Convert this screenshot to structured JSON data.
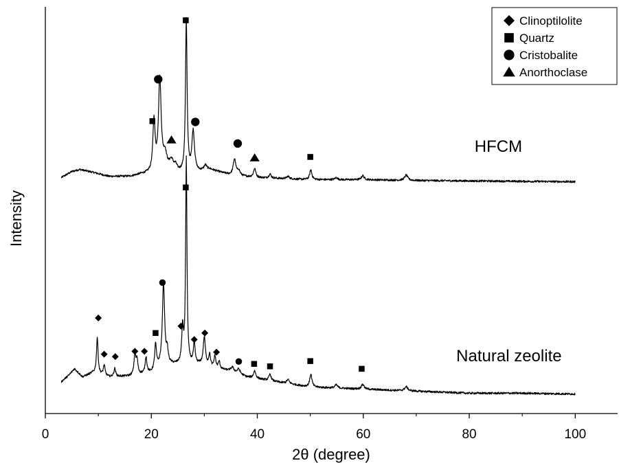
{
  "chart_data": {
    "type": "line",
    "title": "",
    "xlabel": "2θ (degree)",
    "ylabel": "Intensity",
    "xlim": [
      0,
      108
    ],
    "ylim": [
      0,
      1
    ],
    "xticks": [
      0,
      20,
      40,
      60,
      80,
      100
    ],
    "xtick_labels": [
      "0",
      "20",
      "40",
      "60",
      "80",
      "100"
    ],
    "y_ticks_shown": false,
    "grid": false,
    "legend_placement": "top-right",
    "series_colors": {
      "line": "#000000"
    },
    "legend": [
      {
        "label": "Clinoptilolite",
        "marker": "diamond"
      },
      {
        "label": "Quartz",
        "marker": "square"
      },
      {
        "label": "Cristobalite",
        "marker": "circle"
      },
      {
        "label": "Anorthoclase",
        "marker": "triangle"
      }
    ],
    "series": [
      {
        "name": "HFCM",
        "label_at": [
          85.5,
          0.644
        ],
        "baseline": [
          [
            3,
            0.58
          ],
          [
            5,
            0.595
          ],
          [
            6.5,
            0.6
          ],
          [
            9,
            0.593
          ],
          [
            12,
            0.583
          ],
          [
            16,
            0.583
          ],
          [
            18,
            0.588
          ],
          [
            20,
            0.59
          ],
          [
            22,
            0.598
          ],
          [
            24,
            0.593
          ],
          [
            26,
            0.59
          ],
          [
            28,
            0.59
          ],
          [
            31,
            0.6
          ],
          [
            35,
            0.586
          ],
          [
            40,
            0.58
          ],
          [
            50,
            0.575
          ],
          [
            60,
            0.575
          ],
          [
            70,
            0.573
          ],
          [
            80,
            0.572
          ],
          [
            100,
            0.57
          ]
        ],
        "peaks": [
          [
            20.5,
            0.123,
            0.25
          ],
          [
            21.6,
            0.223,
            0.3
          ],
          [
            22.6,
            0.035,
            0.4
          ],
          [
            23.8,
            0.025,
            0.5
          ],
          [
            24.6,
            0.012,
            0.3
          ],
          [
            26.6,
            0.375,
            0.18
          ],
          [
            27.9,
            0.102,
            0.3
          ],
          [
            30.2,
            0.012,
            0.3
          ],
          [
            35.7,
            0.04,
            0.3
          ],
          [
            36.5,
            0.012,
            0.3
          ],
          [
            39.5,
            0.022,
            0.25
          ],
          [
            42.4,
            0.01,
            0.25
          ],
          [
            45.8,
            0.006,
            0.3
          ],
          [
            50.1,
            0.024,
            0.25
          ],
          [
            54.9,
            0.005,
            0.3
          ],
          [
            59.9,
            0.01,
            0.3
          ],
          [
            68.1,
            0.013,
            0.35
          ]
        ]
      },
      {
        "name": "Natural zeolite",
        "label_at": [
          87.5,
          0.128
        ],
        "baseline": [
          [
            3,
            0.078
          ],
          [
            4.5,
            0.095
          ],
          [
            5.5,
            0.11
          ],
          [
            7,
            0.09
          ],
          [
            9,
            0.1
          ],
          [
            12,
            0.09
          ],
          [
            16,
            0.092
          ],
          [
            20,
            0.1
          ],
          [
            22,
            0.12
          ],
          [
            25,
            0.12
          ],
          [
            29,
            0.12
          ],
          [
            32,
            0.11
          ],
          [
            35,
            0.105
          ],
          [
            38,
            0.09
          ],
          [
            45,
            0.075
          ],
          [
            50,
            0.065
          ],
          [
            60,
            0.06
          ],
          [
            70,
            0.055
          ],
          [
            80,
            0.05
          ],
          [
            90,
            0.05
          ],
          [
            100,
            0.048
          ]
        ],
        "peaks": [
          [
            9.8,
            0.09,
            0.18
          ],
          [
            11.1,
            0.025,
            0.2
          ],
          [
            13.1,
            0.02,
            0.2
          ],
          [
            16.9,
            0.05,
            0.2
          ],
          [
            17.3,
            0.035,
            0.2
          ],
          [
            19.0,
            0.04,
            0.2
          ],
          [
            20.8,
            0.06,
            0.2
          ],
          [
            22.3,
            0.2,
            0.25
          ],
          [
            23.0,
            0.03,
            0.2
          ],
          [
            25.9,
            0.085,
            0.2
          ],
          [
            26.6,
            0.505,
            0.15
          ],
          [
            28.1,
            0.05,
            0.2
          ],
          [
            30.0,
            0.07,
            0.25
          ],
          [
            31.0,
            0.03,
            0.2
          ],
          [
            32.0,
            0.03,
            0.2
          ],
          [
            32.8,
            0.018,
            0.2
          ],
          [
            35.3,
            0.01,
            0.3
          ],
          [
            36.5,
            0.012,
            0.3
          ],
          [
            39.5,
            0.018,
            0.25
          ],
          [
            42.4,
            0.016,
            0.25
          ],
          [
            45.8,
            0.01,
            0.3
          ],
          [
            50.1,
            0.032,
            0.25
          ],
          [
            54.9,
            0.008,
            0.3
          ],
          [
            59.9,
            0.012,
            0.3
          ],
          [
            68.1,
            0.01,
            0.35
          ]
        ]
      }
    ],
    "phase_markers": [
      {
        "series": "HFCM",
        "phase": "Quartz",
        "x": 20.2,
        "y": 0.719
      },
      {
        "series": "HFCM",
        "phase": "Cristobalite",
        "x": 21.3,
        "y": 0.822
      },
      {
        "series": "HFCM",
        "phase": "Anorthoclase",
        "x": 23.8,
        "y": 0.673
      },
      {
        "series": "HFCM",
        "phase": "Quartz",
        "x": 26.5,
        "y": 0.967
      },
      {
        "series": "HFCM",
        "phase": "Cristobalite",
        "x": 28.3,
        "y": 0.717
      },
      {
        "series": "HFCM",
        "phase": "Cristobalite",
        "x": 36.3,
        "y": 0.664
      },
      {
        "series": "HFCM",
        "phase": "Anorthoclase",
        "x": 39.5,
        "y": 0.629
      },
      {
        "series": "HFCM",
        "phase": "Quartz",
        "x": 50.0,
        "y": 0.631
      },
      {
        "series": "Natural zeolite",
        "phase": "Quartz",
        "x": 26.5,
        "y": 0.556
      },
      {
        "series": "Natural zeolite",
        "phase": "Cristobalite",
        "x": 22.1,
        "y": 0.322
      },
      {
        "series": "Natural zeolite",
        "phase": "Clinoptilolite",
        "x": 10.0,
        "y": 0.235
      },
      {
        "series": "Natural zeolite",
        "phase": "Clinoptilolite",
        "x": 11.1,
        "y": 0.146
      },
      {
        "series": "Natural zeolite",
        "phase": "Clinoptilolite",
        "x": 13.2,
        "y": 0.14
      },
      {
        "series": "Natural zeolite",
        "phase": "Clinoptilolite",
        "x": 16.9,
        "y": 0.153
      },
      {
        "series": "Natural zeolite",
        "phase": "Clinoptilolite",
        "x": 18.7,
        "y": 0.153
      },
      {
        "series": "Natural zeolite",
        "phase": "Quartz",
        "x": 20.8,
        "y": 0.198
      },
      {
        "series": "Natural zeolite",
        "phase": "Clinoptilolite",
        "x": 25.6,
        "y": 0.215
      },
      {
        "series": "Natural zeolite",
        "phase": "Clinoptilolite",
        "x": 28.1,
        "y": 0.182
      },
      {
        "series": "Natural zeolite",
        "phase": "Clinoptilolite",
        "x": 30.1,
        "y": 0.198
      },
      {
        "series": "Natural zeolite",
        "phase": "Clinoptilolite",
        "x": 32.3,
        "y": 0.151
      },
      {
        "series": "Natural zeolite",
        "phase": "Cristobalite",
        "x": 36.5,
        "y": 0.128
      },
      {
        "series": "Natural zeolite",
        "phase": "Quartz",
        "x": 39.4,
        "y": 0.122
      },
      {
        "series": "Natural zeolite",
        "phase": "Quartz",
        "x": 42.4,
        "y": 0.116
      },
      {
        "series": "Natural zeolite",
        "phase": "Quartz",
        "x": 50.0,
        "y": 0.129
      },
      {
        "series": "Natural zeolite",
        "phase": "Quartz",
        "x": 59.7,
        "y": 0.11
      }
    ]
  }
}
